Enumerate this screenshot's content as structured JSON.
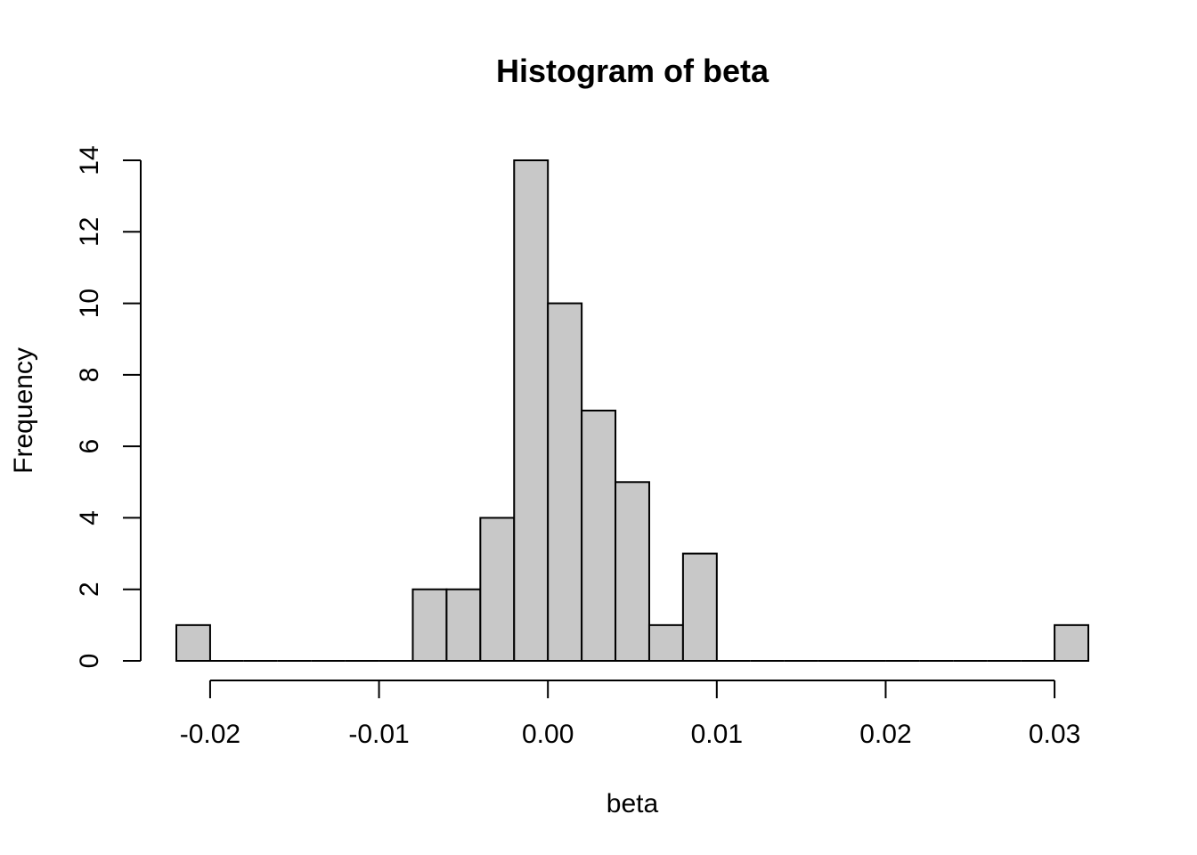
{
  "chart_data": {
    "type": "bar",
    "title": "Histogram of beta",
    "xlabel": "beta",
    "ylabel": "Frequency",
    "bins": [
      {
        "x0": -0.022,
        "x1": -0.02,
        "count": 1
      },
      {
        "x0": -0.02,
        "x1": -0.018,
        "count": 0
      },
      {
        "x0": -0.018,
        "x1": -0.016,
        "count": 0
      },
      {
        "x0": -0.016,
        "x1": -0.014,
        "count": 0
      },
      {
        "x0": -0.014,
        "x1": -0.012,
        "count": 0
      },
      {
        "x0": -0.012,
        "x1": -0.01,
        "count": 0
      },
      {
        "x0": -0.01,
        "x1": -0.008,
        "count": 0
      },
      {
        "x0": -0.008,
        "x1": -0.006,
        "count": 2
      },
      {
        "x0": -0.006,
        "x1": -0.004,
        "count": 2
      },
      {
        "x0": -0.004,
        "x1": -0.002,
        "count": 4
      },
      {
        "x0": -0.002,
        "x1": 0.0,
        "count": 14
      },
      {
        "x0": 0.0,
        "x1": 0.002,
        "count": 10
      },
      {
        "x0": 0.002,
        "x1": 0.004,
        "count": 7
      },
      {
        "x0": 0.004,
        "x1": 0.006,
        "count": 5
      },
      {
        "x0": 0.006,
        "x1": 0.008,
        "count": 1
      },
      {
        "x0": 0.008,
        "x1": 0.01,
        "count": 3
      },
      {
        "x0": 0.01,
        "x1": 0.012,
        "count": 0
      },
      {
        "x0": 0.012,
        "x1": 0.014,
        "count": 0
      },
      {
        "x0": 0.014,
        "x1": 0.016,
        "count": 0
      },
      {
        "x0": 0.016,
        "x1": 0.018,
        "count": 0
      },
      {
        "x0": 0.018,
        "x1": 0.02,
        "count": 0
      },
      {
        "x0": 0.02,
        "x1": 0.022,
        "count": 0
      },
      {
        "x0": 0.022,
        "x1": 0.024,
        "count": 0
      },
      {
        "x0": 0.024,
        "x1": 0.026,
        "count": 0
      },
      {
        "x0": 0.026,
        "x1": 0.028,
        "count": 0
      },
      {
        "x0": 0.028,
        "x1": 0.03,
        "count": 0
      },
      {
        "x0": 0.03,
        "x1": 0.032,
        "count": 1
      }
    ],
    "xticks": [
      {
        "value": -0.02,
        "label": "-0.02"
      },
      {
        "value": -0.01,
        "label": "-0.01"
      },
      {
        "value": 0.0,
        "label": "0.00"
      },
      {
        "value": 0.01,
        "label": "0.01"
      },
      {
        "value": 0.02,
        "label": "0.02"
      },
      {
        "value": 0.03,
        "label": "0.03"
      }
    ],
    "yticks": [
      {
        "value": 0,
        "label": "0"
      },
      {
        "value": 2,
        "label": "2"
      },
      {
        "value": 4,
        "label": "4"
      },
      {
        "value": 6,
        "label": "6"
      },
      {
        "value": 8,
        "label": "8"
      },
      {
        "value": 10,
        "label": "10"
      },
      {
        "value": 12,
        "label": "12"
      },
      {
        "value": 14,
        "label": "14"
      }
    ],
    "xlim": [
      -0.022,
      0.032
    ],
    "ylim": [
      0,
      14
    ],
    "grid": false,
    "legend": "none",
    "colors": {
      "bar_fill": "#c8c8c8",
      "bar_stroke": "#000000"
    }
  }
}
